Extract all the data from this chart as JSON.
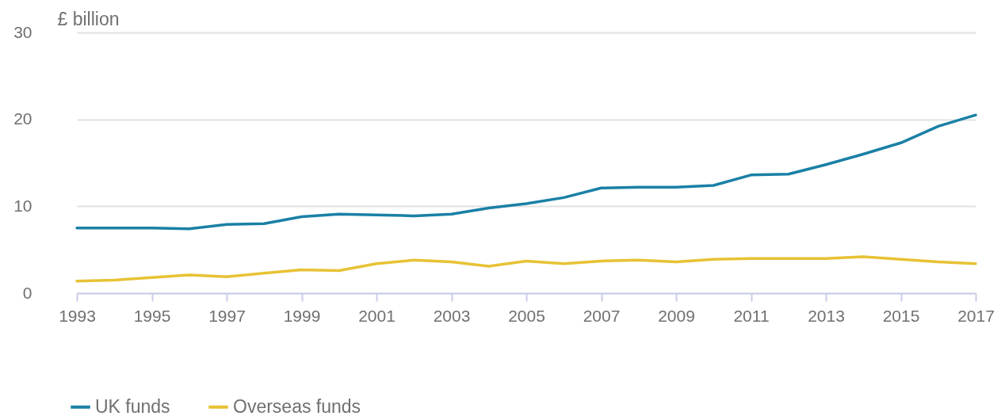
{
  "chart_data": {
    "type": "line",
    "ylabel": "£ billion",
    "x": [
      1993,
      1994,
      1995,
      1996,
      1997,
      1998,
      1999,
      2000,
      2001,
      2002,
      2003,
      2004,
      2005,
      2006,
      2007,
      2008,
      2009,
      2010,
      2011,
      2012,
      2013,
      2014,
      2015,
      2016,
      2017
    ],
    "series": [
      {
        "name": "UK funds",
        "color": "#1a80a6",
        "values": [
          7.5,
          7.5,
          7.5,
          7.4,
          7.9,
          8.0,
          8.8,
          9.1,
          9.0,
          8.9,
          9.1,
          9.8,
          10.3,
          11.0,
          12.1,
          12.2,
          12.2,
          12.4,
          13.6,
          13.7,
          14.8,
          16.0,
          17.3,
          19.2,
          20.5
        ]
      },
      {
        "name": "Overseas funds",
        "color": "#e7c235",
        "values": [
          1.4,
          1.5,
          1.8,
          2.1,
          1.9,
          2.3,
          2.7,
          2.6,
          3.4,
          3.8,
          3.6,
          3.1,
          3.7,
          3.4,
          3.7,
          3.8,
          3.6,
          3.9,
          4.0,
          4.0,
          4.0,
          4.2,
          3.9,
          3.6,
          3.4
        ]
      }
    ],
    "xlim": [
      1993,
      2017
    ],
    "xticks": [
      1993,
      1995,
      1997,
      1999,
      2001,
      2003,
      2005,
      2007,
      2009,
      2011,
      2013,
      2015,
      2017
    ],
    "ylim": [
      0,
      30
    ],
    "yticks": [
      0,
      10,
      20,
      30
    ],
    "grid": "y",
    "legend": "bottom"
  }
}
